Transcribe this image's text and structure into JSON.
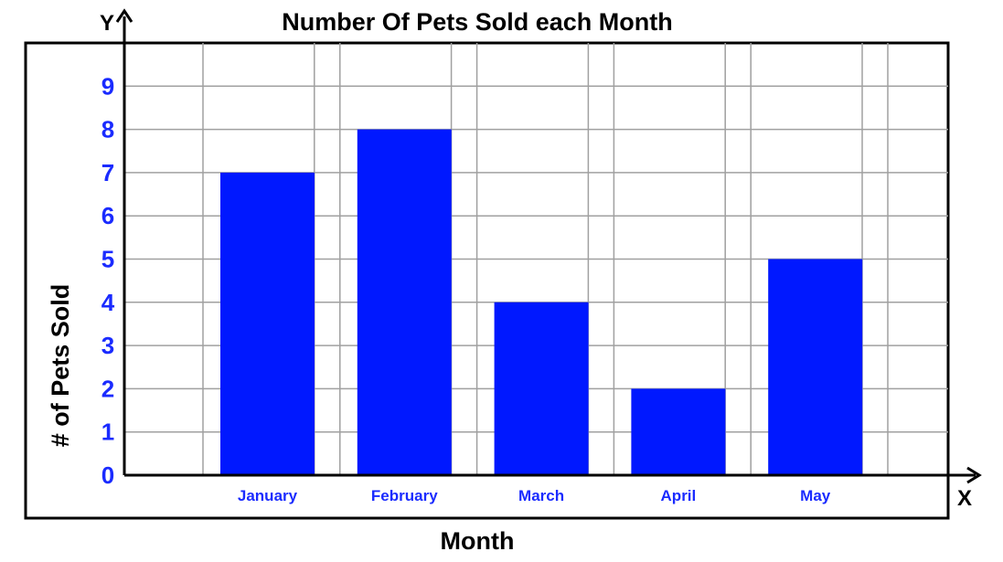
{
  "colors": {
    "bar": "#0018ff",
    "tick_text": "#1a2bff",
    "grid": "#a0a0a0",
    "frame": "#000000"
  },
  "chart_data": {
    "type": "bar",
    "title": "Number Of Pets Sold each Month",
    "xlabel": "Month",
    "ylabel": "# of Pets Sold",
    "x_axis_letter": "X",
    "y_axis_letter": "Y",
    "categories": [
      "January",
      "February",
      "March",
      "April",
      "May"
    ],
    "values": [
      7,
      8,
      4,
      2,
      5
    ],
    "yticks": [
      "0",
      "1",
      "2",
      "3",
      "4",
      "5",
      "6",
      "7",
      "8",
      "9"
    ],
    "ylim": [
      0,
      9
    ],
    "grid": true,
    "legend": "none"
  }
}
